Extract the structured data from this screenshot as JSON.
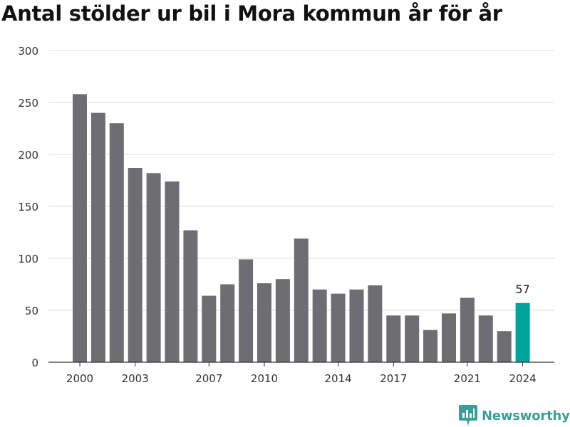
{
  "title": "Antal stölder ur bil i Mora kommun år för år",
  "brand": {
    "name": "Newsworthy",
    "icon": "newsworthy-logo-icon",
    "color": "#3a9e98"
  },
  "chart_data": {
    "type": "bar",
    "title": "Antal stölder ur bil i Mora kommun år för år",
    "xlabel": "",
    "ylabel": "",
    "categories": [
      2000,
      2001,
      2002,
      2003,
      2004,
      2005,
      2006,
      2007,
      2008,
      2009,
      2010,
      2011,
      2012,
      2013,
      2014,
      2015,
      2016,
      2017,
      2018,
      2019,
      2020,
      2021,
      2022,
      2023,
      2024
    ],
    "values": [
      258,
      240,
      230,
      187,
      182,
      174,
      127,
      64,
      75,
      99,
      76,
      80,
      119,
      70,
      66,
      70,
      74,
      45,
      45,
      31,
      47,
      62,
      45,
      30,
      57
    ],
    "x_tick_labels": [
      "2000",
      "2003",
      "2007",
      "2010",
      "2014",
      "2017",
      "2021",
      "2024"
    ],
    "y_tick_labels": [
      "0",
      "50",
      "100",
      "150",
      "200",
      "250",
      "300"
    ],
    "ylim": [
      0,
      300
    ],
    "grid": true,
    "legend": "none",
    "highlight": {
      "category": 2024,
      "label": "57"
    },
    "colors": {
      "bar": "#6d6d72",
      "highlight": "#00a39a",
      "grid": "#dddddd",
      "axis": "#333333"
    }
  }
}
